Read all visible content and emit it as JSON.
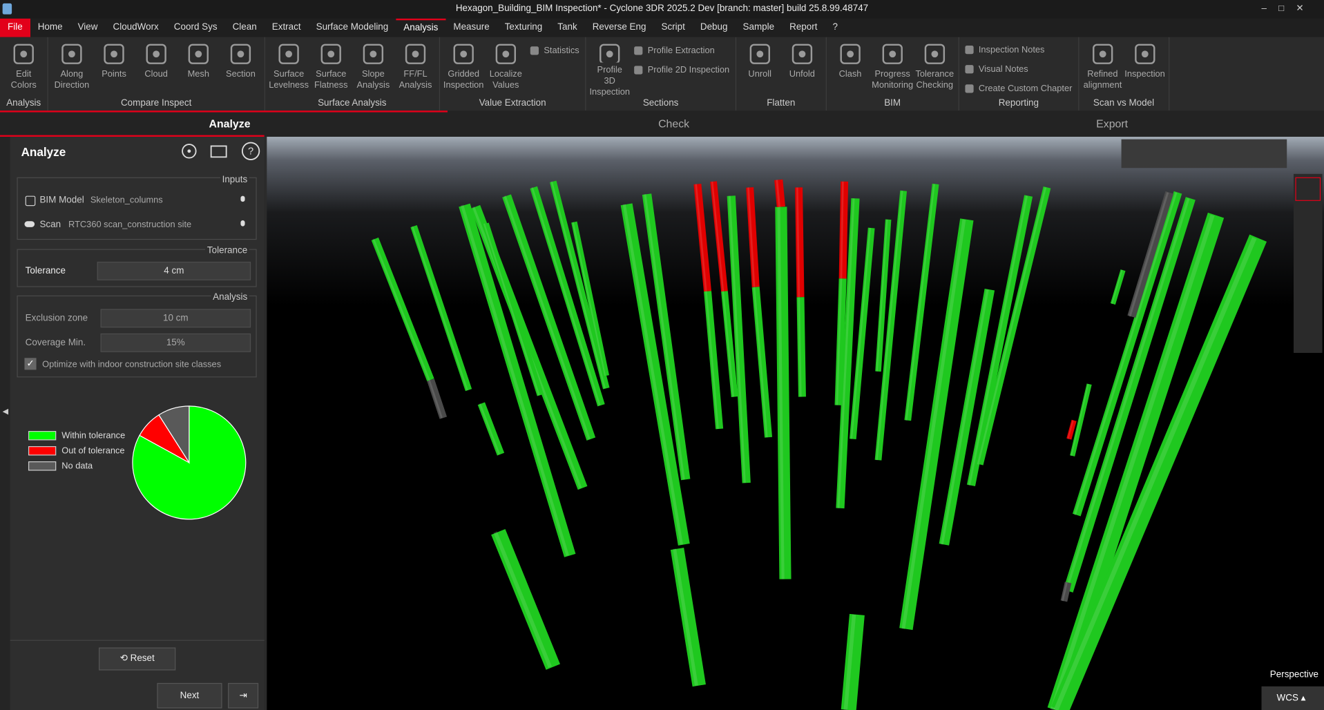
{
  "window": {
    "title": "Hexagon_Building_BIM Inspection* - Cyclone 3DR 2025.2 Dev [branch: master] build 25.8.99.48747"
  },
  "menu": [
    "File",
    "Home",
    "View",
    "CloudWorx",
    "Coord Sys",
    "Clean",
    "Extract",
    "Surface Modeling",
    "Analysis",
    "Measure",
    "Texturing",
    "Tank",
    "Reverse Eng",
    "Script",
    "Debug",
    "Sample",
    "Report",
    "?"
  ],
  "ribbon": [
    {
      "name": "Analysis",
      "buttons": [
        [
          "Edit",
          "Colors"
        ]
      ],
      "small": []
    },
    {
      "name": "Compare Inspect",
      "buttons": [
        [
          "Along",
          "Direction"
        ],
        [
          "Points"
        ],
        [
          "Cloud"
        ],
        [
          "Mesh"
        ],
        [
          "Section"
        ]
      ],
      "small": []
    },
    {
      "name": "Surface Analysis",
      "buttons": [
        [
          "Surface",
          "Levelness"
        ],
        [
          "Surface",
          "Flatness"
        ],
        [
          "Slope",
          "Analysis"
        ],
        [
          "FF/FL",
          "Analysis"
        ]
      ],
      "small": []
    },
    {
      "name": "Value Extraction",
      "buttons": [
        [
          "Gridded",
          "Inspection"
        ],
        [
          "Localize",
          "Values"
        ]
      ],
      "small": [
        "Statistics"
      ]
    },
    {
      "name": "Sections",
      "buttons": [
        [
          "Profile 3D",
          "Inspection"
        ]
      ],
      "small": [
        "Profile Extraction",
        "Profile 2D Inspection"
      ]
    },
    {
      "name": "Flatten",
      "buttons": [
        [
          "Unroll"
        ],
        [
          "Unfold"
        ]
      ],
      "small": []
    },
    {
      "name": "BIM",
      "buttons": [
        [
          "Clash"
        ],
        [
          "Progress",
          "Monitoring"
        ],
        [
          "Tolerance",
          "Checking"
        ]
      ],
      "small": []
    },
    {
      "name": "Reporting",
      "buttons": [],
      "small": [
        "Inspection Notes",
        "Visual Notes",
        "Create Custom Chapter"
      ]
    },
    {
      "name": "Scan vs Model",
      "buttons": [
        [
          "Refined",
          "alignment"
        ],
        [
          "Inspection"
        ]
      ],
      "small": []
    }
  ],
  "steps": [
    "Analyze",
    "Check",
    "Export"
  ],
  "panel": {
    "title": "Analyze",
    "inputs": {
      "label": "Inputs",
      "rows": [
        [
          "BIM Model",
          "Skeleton_columns"
        ],
        [
          "Scan",
          "RTC360 scan_construction site"
        ]
      ]
    },
    "tolerance": {
      "label": "Tolerance",
      "field": "Tolerance",
      "value": "4 cm"
    },
    "analysis": {
      "label": "Analysis",
      "rows": [
        [
          "Exclusion zone",
          "10 cm"
        ],
        [
          "Coverage Min.",
          "15%"
        ]
      ],
      "checkbox": "Optimize with indoor construction site classes"
    },
    "buttons": {
      "reset": "Reset",
      "next": "Next"
    }
  },
  "chart": {
    "type": "pie",
    "categories": [
      "Within tolerance",
      "Out of tolerance",
      "No data"
    ],
    "colors": [
      "#00ff00",
      "#ff0000",
      "#595959"
    ],
    "values": [
      83,
      8,
      9
    ]
  },
  "viewport": {
    "projection": "Perspective",
    "frame": "WCS"
  }
}
